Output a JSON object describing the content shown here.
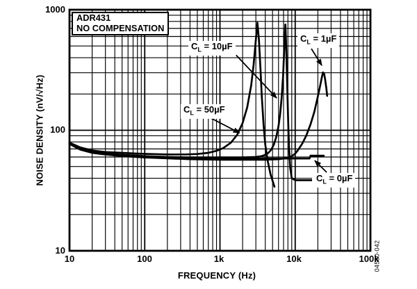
{
  "figure": {
    "title_line1": "ADR431",
    "title_line2": "NO COMPENSATION",
    "watermark": "04500-042"
  },
  "chart_data": {
    "type": "line",
    "title": "ADR431 NO COMPENSATION — Noise Density vs. Frequency",
    "x_scale": "log",
    "y_scale": "log",
    "xlim": [
      10,
      100000
    ],
    "ylim": [
      10,
      1000
    ],
    "xlabel": "FREQUENCY (Hz)",
    "ylabel": "NOISE DENSITY (nV/√Hz)",
    "x_ticks": [
      {
        "value": 10,
        "label": "10"
      },
      {
        "value": 100,
        "label": "100"
      },
      {
        "value": 1000,
        "label": "1k"
      },
      {
        "value": 10000,
        "label": "10k"
      },
      {
        "value": 100000,
        "label": "100k"
      }
    ],
    "y_ticks": [
      {
        "value": 10,
        "label": "10"
      },
      {
        "value": 100,
        "label": "100"
      },
      {
        "value": 1000,
        "label": "1000"
      }
    ],
    "grid": {
      "major": true,
      "minor": true
    },
    "legend_position": "inline-annotations",
    "colors": {
      "foreground": "#000000",
      "background": "#ffffff"
    },
    "series": [
      {
        "name": "CL = 0µF",
        "points": [
          [
            10,
            78
          ],
          [
            13,
            71
          ],
          [
            17,
            67
          ],
          [
            25,
            64
          ],
          [
            40,
            62
          ],
          [
            70,
            60.5
          ],
          [
            100,
            60
          ],
          [
            200,
            59
          ],
          [
            400,
            58.5
          ],
          [
            800,
            58.3
          ],
          [
            2000,
            58.3
          ],
          [
            5000,
            58.3
          ],
          [
            10000,
            58.3
          ],
          [
            15500,
            58.3
          ],
          [
            16000,
            61.5
          ],
          [
            24000,
            61.5
          ]
        ]
      },
      {
        "name": "CL = 50µF",
        "points": [
          [
            10,
            79
          ],
          [
            14,
            72
          ],
          [
            20,
            68
          ],
          [
            30,
            66
          ],
          [
            50,
            65
          ],
          [
            80,
            64
          ],
          [
            120,
            63.5
          ],
          [
            200,
            63
          ],
          [
            350,
            63
          ],
          [
            500,
            63.5
          ],
          [
            700,
            65
          ],
          [
            900,
            67.5
          ],
          [
            1100,
            71
          ],
          [
            1400,
            79
          ],
          [
            1700,
            92
          ],
          [
            2000,
            115
          ],
          [
            2300,
            155
          ],
          [
            2600,
            235
          ],
          [
            2800,
            350
          ],
          [
            3000,
            560
          ],
          [
            3150,
            780
          ],
          [
            3300,
            560
          ],
          [
            3450,
            330
          ],
          [
            3600,
            190
          ],
          [
            3800,
            110
          ],
          [
            4000,
            76
          ],
          [
            4300,
            56
          ],
          [
            4700,
            43
          ],
          [
            5300,
            34
          ]
        ]
      },
      {
        "name": "CL = 10µF",
        "points": [
          [
            10,
            78
          ],
          [
            14,
            70
          ],
          [
            20,
            66
          ],
          [
            30,
            64
          ],
          [
            50,
            62.5
          ],
          [
            100,
            61
          ],
          [
            200,
            60
          ],
          [
            400,
            59.5
          ],
          [
            1000,
            59.5
          ],
          [
            2000,
            59.5
          ],
          [
            3000,
            60
          ],
          [
            3600,
            61
          ],
          [
            4000,
            62.5
          ],
          [
            4400,
            65
          ],
          [
            4800,
            69
          ],
          [
            5200,
            76
          ],
          [
            5600,
            88
          ],
          [
            6000,
            108
          ],
          [
            6300,
            135
          ],
          [
            6600,
            185
          ],
          [
            6900,
            280
          ],
          [
            7100,
            420
          ],
          [
            7300,
            650
          ],
          [
            7400,
            755
          ],
          [
            7550,
            560
          ],
          [
            7700,
            350
          ],
          [
            7900,
            190
          ],
          [
            8100,
            110
          ],
          [
            8300,
            70
          ],
          [
            8600,
            48
          ],
          [
            9000,
            40
          ],
          [
            10000,
            38.5
          ],
          [
            19000,
            38.5
          ]
        ]
      },
      {
        "name": "CL = 1µF",
        "points": [
          [
            10,
            77
          ],
          [
            14,
            69
          ],
          [
            20,
            65
          ],
          [
            30,
            63
          ],
          [
            50,
            61
          ],
          [
            100,
            59.5
          ],
          [
            200,
            58.5
          ],
          [
            400,
            57.5
          ],
          [
            1000,
            57
          ],
          [
            2000,
            57
          ],
          [
            4000,
            57
          ],
          [
            6000,
            57.5
          ],
          [
            8000,
            59
          ],
          [
            9000,
            61
          ],
          [
            10000,
            64
          ],
          [
            11000,
            69
          ],
          [
            12500,
            78
          ],
          [
            14000,
            90
          ],
          [
            16000,
            112
          ],
          [
            18000,
            143
          ],
          [
            20000,
            190
          ],
          [
            21500,
            235
          ],
          [
            22500,
            272
          ],
          [
            23400,
            302
          ],
          [
            24200,
            295
          ],
          [
            25000,
            265
          ],
          [
            26000,
            220
          ],
          [
            26600,
            193
          ]
        ]
      }
    ],
    "annotations": [
      {
        "prefix": "C",
        "sub": "L",
        "suffix": " = 10µF",
        "arrow_from": [
          1640,
          420
        ],
        "arrow_to": [
          5670,
          185
        ]
      },
      {
        "prefix": "C",
        "sub": "L",
        "suffix": " = 1µF",
        "arrow_from": [
          16400,
          475
        ],
        "arrow_to": [
          22600,
          345
        ]
      },
      {
        "prefix": "C",
        "sub": "L",
        "suffix": " = 50µF",
        "arrow_from": [
          760,
          126
        ],
        "arrow_to": [
          1820,
          95
        ]
      },
      {
        "prefix": "C",
        "sub": "L",
        "suffix": " = 0µF",
        "arrow_from": [
          26200,
          44.8
        ],
        "arrow_to": [
          18200,
          56
        ]
      }
    ]
  }
}
